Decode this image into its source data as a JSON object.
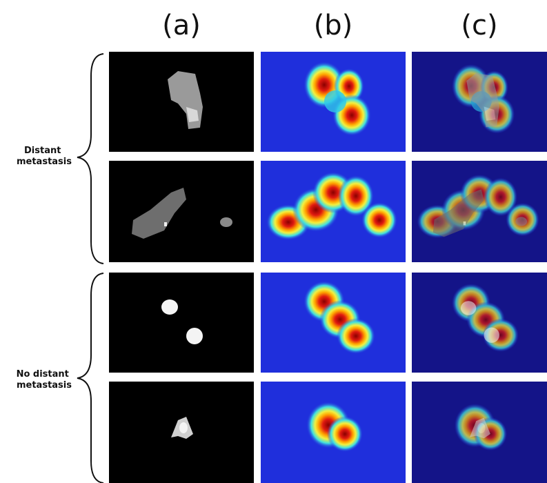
{
  "columns": [
    "(a)",
    "(b)",
    "(c)"
  ],
  "groups": [
    {
      "label_lines": [
        "Distant",
        "metastasis"
      ]
    },
    {
      "label_lines": [
        "No distant",
        "metastasis"
      ]
    }
  ]
}
